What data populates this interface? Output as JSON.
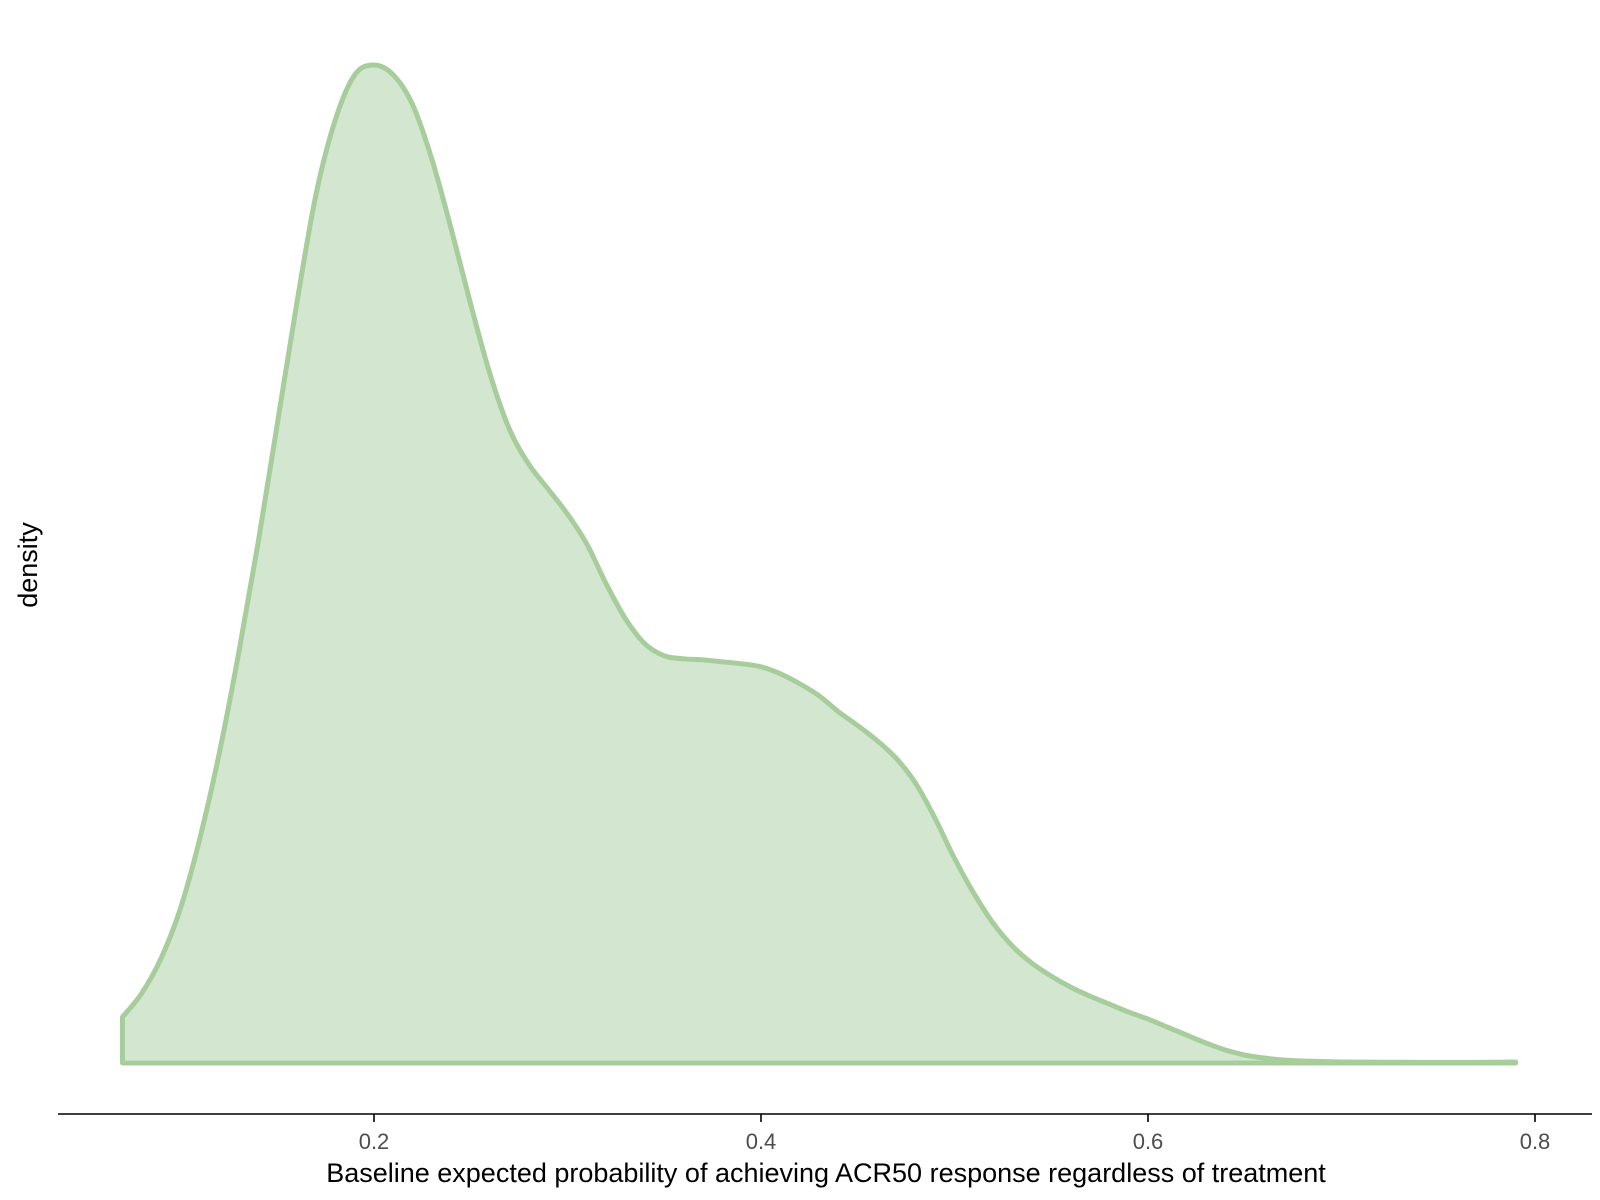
{
  "chart_data": {
    "type": "area",
    "title": "",
    "xlabel": "Baseline expected probability of achieving ACR50 response regardless of treatment",
    "ylabel": "density",
    "xlim": [
      0.035,
      0.83
    ],
    "ylim": [
      0,
      1.0
    ],
    "x_ticks": [
      0.2,
      0.4,
      0.6,
      0.8
    ],
    "x_tick_labels": [
      "0.2",
      "0.4",
      "0.6",
      "0.8"
    ],
    "y_ticks_shown": false,
    "grid": false,
    "legend": "none",
    "fill_color": "#d3e6cf",
    "line_color": "#a8cd9c",
    "series": [
      {
        "x": [
          0.07,
          0.08,
          0.09,
          0.1,
          0.11,
          0.12,
          0.13,
          0.14,
          0.15,
          0.16,
          0.17,
          0.18,
          0.19,
          0.2,
          0.21,
          0.22,
          0.23,
          0.24,
          0.25,
          0.26,
          0.27,
          0.28,
          0.29,
          0.3,
          0.31,
          0.32,
          0.33,
          0.34,
          0.35,
          0.36,
          0.37,
          0.38,
          0.39,
          0.4,
          0.41,
          0.42,
          0.43,
          0.44,
          0.45,
          0.46,
          0.47,
          0.48,
          0.49,
          0.5,
          0.51,
          0.52,
          0.53,
          0.54,
          0.55,
          0.56,
          0.57,
          0.58,
          0.59,
          0.6,
          0.61,
          0.62,
          0.63,
          0.64,
          0.65,
          0.66,
          0.67,
          0.68,
          0.69,
          0.7,
          0.72,
          0.74,
          0.76,
          0.78,
          0.79
        ],
        "y": [
          0.046,
          0.07,
          0.105,
          0.155,
          0.225,
          0.31,
          0.41,
          0.52,
          0.64,
          0.76,
          0.87,
          0.945,
          0.99,
          1.0,
          0.99,
          0.96,
          0.905,
          0.835,
          0.76,
          0.69,
          0.635,
          0.6,
          0.575,
          0.55,
          0.52,
          0.48,
          0.445,
          0.42,
          0.408,
          0.405,
          0.404,
          0.402,
          0.4,
          0.397,
          0.39,
          0.38,
          0.368,
          0.352,
          0.338,
          0.323,
          0.305,
          0.28,
          0.245,
          0.205,
          0.17,
          0.14,
          0.117,
          0.1,
          0.087,
          0.076,
          0.067,
          0.059,
          0.051,
          0.044,
          0.036,
          0.028,
          0.02,
          0.013,
          0.008,
          0.005,
          0.003,
          0.002,
          0.0015,
          0.001,
          0.0008,
          0.0006,
          0.0006,
          0.0008,
          0.001
        ]
      }
    ]
  }
}
